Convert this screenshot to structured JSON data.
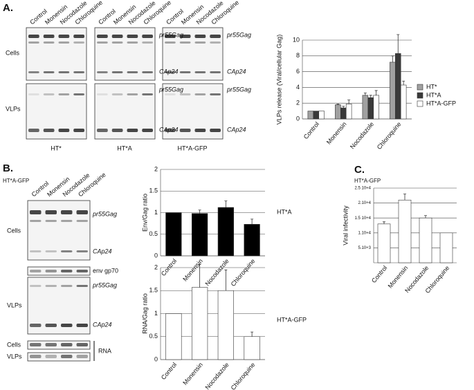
{
  "panels": {
    "a": {
      "label": "A.",
      "conditions": [
        "Control",
        "Monensin",
        "Nocodazole",
        "Chloroquine"
      ],
      "rows": [
        "Cells",
        "VLPs"
      ],
      "bands": [
        "pr55Gag",
        "CAp24"
      ],
      "cell_lines": [
        "HT*",
        "HT*A",
        "HT*A-GFP"
      ]
    },
    "b": {
      "label": "B.",
      "cell_line": "HT*A-GFP",
      "conditions": [
        "Control",
        "Monensin",
        "Nocodazole",
        "Chloroquine"
      ],
      "rows": [
        "Cells",
        "VLPs"
      ],
      "bands": [
        "pr55Gag",
        "CAp24"
      ],
      "env": "env gp70",
      "rna": "RNA"
    },
    "c": {
      "label": "C.",
      "cell_line": "HT*A-GFP"
    }
  },
  "chart_data": [
    {
      "type": "bar",
      "y_label": "VLPs release (Viral/cellular Gag)",
      "categories": [
        "Control",
        "Monensin",
        "Nocodazole",
        "Chloroquine"
      ],
      "series": [
        {
          "name": "HT*",
          "color": "#a0a0a0",
          "values": [
            1,
            1.8,
            3.0,
            7.2
          ],
          "errors": [
            null,
            0.1,
            0.3,
            0.8
          ]
        },
        {
          "name": "HT*A",
          "color": "#3a3a3a",
          "values": [
            1,
            1.4,
            2.7,
            8.3
          ],
          "errors": [
            null,
            0.2,
            0.3,
            2.4
          ]
        },
        {
          "name": "HT*A-GFP",
          "color": "#ffffff",
          "values": [
            1,
            1.9,
            3.0,
            4.3
          ],
          "errors": [
            null,
            0.5,
            0.6,
            0.5
          ]
        }
      ],
      "ylim": [
        0,
        10
      ],
      "yticks": [
        0,
        2,
        4,
        6,
        8,
        10
      ],
      "grid": true,
      "legend": "right"
    },
    {
      "type": "bar",
      "y_label": "Env/Gag ratio",
      "annotation": "HT*A",
      "categories": [
        "Control",
        "Monensin",
        "Nocodazole",
        "Chloroquine"
      ],
      "values": [
        1,
        0.98,
        1.12,
        0.73
      ],
      "errors": [
        null,
        0.08,
        0.15,
        0.12
      ],
      "color": "#000000",
      "ylim": [
        0,
        2
      ],
      "yticks": [
        0,
        0.5,
        1,
        1.5,
        2
      ],
      "grid": true
    },
    {
      "type": "bar",
      "y_label": "RNA/Gag ratio",
      "annotation": "HT*A-GFP",
      "categories": [
        "Control",
        "Monensin",
        "Nocodazole",
        "Chloroquine"
      ],
      "values": [
        1,
        1.57,
        1.5,
        0.5
      ],
      "errors": [
        null,
        0.5,
        0.45,
        0.1
      ],
      "color": "#ffffff",
      "ylim": [
        0,
        2
      ],
      "yticks": [
        0,
        0.5,
        1,
        1.5,
        2
      ],
      "grid": true
    },
    {
      "type": "bar",
      "y_label": "Viral infectivity",
      "categories": [
        "Control",
        "Monensin",
        "Nocodazole",
        "Chloroquine"
      ],
      "values": [
        13000,
        21000,
        15000,
        10000
      ],
      "errors": [
        700,
        2000,
        800,
        null
      ],
      "color": "#ffffff",
      "ylim": [
        0,
        25000
      ],
      "yticks": [
        {
          "value": 5000,
          "label": "5.10+3"
        },
        {
          "value": 10000,
          "label": "1.10+4"
        },
        {
          "value": 15000,
          "label": "1.5 10+4"
        },
        {
          "value": 20000,
          "label": "2.10+4"
        },
        {
          "value": 25000,
          "label": "2.5 10+4"
        }
      ],
      "grid": true
    }
  ]
}
